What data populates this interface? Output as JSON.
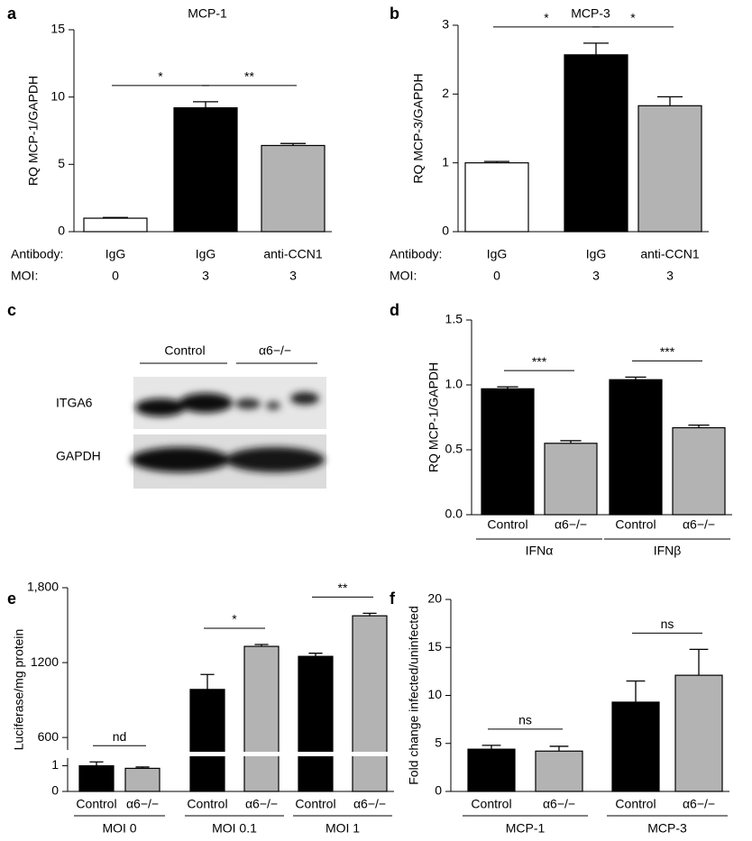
{
  "chart_data": [
    {
      "type": "bar",
      "panel": "a",
      "title": "MCP-1",
      "y_label": "RQ MCP-1/GAPDH",
      "ylim": [
        0,
        15
      ],
      "yticks": [
        0,
        5,
        10,
        15
      ],
      "values": [
        1.0,
        9.2,
        6.4
      ],
      "errors": [
        0.05,
        0.45,
        0.15
      ],
      "colors": [
        "#ffffff",
        "#000000",
        "#b3b3b3"
      ],
      "rows": [
        {
          "label": "Antibody:",
          "values": [
            "IgG",
            "IgG",
            "anti-CCN1"
          ]
        },
        {
          "label": "MOI:",
          "values": [
            "0",
            "3",
            "3"
          ]
        }
      ],
      "annotations": [
        {
          "text": "*",
          "between": [
            0,
            1
          ]
        },
        {
          "text": "**",
          "between": [
            1,
            2
          ]
        }
      ]
    },
    {
      "type": "bar",
      "panel": "b",
      "title": "MCP-3",
      "y_label": "RQ MCP-3/GAPDH",
      "ylim": [
        0,
        3
      ],
      "yticks": [
        0,
        1,
        2,
        3
      ],
      "values": [
        1.0,
        2.57,
        1.83
      ],
      "errors": [
        0.02,
        0.17,
        0.13
      ],
      "colors": [
        "#ffffff",
        "#000000",
        "#b3b3b3"
      ],
      "rows": [
        {
          "label": "Antibody:",
          "values": [
            "IgG",
            "IgG",
            "anti-CCN1"
          ]
        },
        {
          "label": "MOI:",
          "values": [
            "0",
            "3",
            "3"
          ]
        }
      ],
      "annotations": [
        {
          "text": "*",
          "between": [
            0,
            1
          ]
        },
        {
          "text": "*",
          "between": [
            1,
            2
          ]
        }
      ]
    },
    {
      "type": "bar",
      "panel": "d",
      "y_label": "RQ MCP-1/GAPDH",
      "ylim": [
        0,
        1.5
      ],
      "yticks": [
        {
          "value": 0,
          "label": "0.0"
        },
        {
          "value": 0.5,
          "label": "0.5"
        },
        {
          "value": 1,
          "label": "1.0"
        },
        {
          "value": 1.5,
          "label": "1.5"
        }
      ],
      "categories": [
        "Control",
        "α6−/−",
        "Control",
        "α6−/−"
      ],
      "groups": [
        "IFNα",
        "IFNβ"
      ],
      "values": [
        0.97,
        0.55,
        1.04,
        0.67
      ],
      "errors": [
        0.015,
        0.02,
        0.02,
        0.02
      ],
      "colors": [
        "#000000",
        "#b3b3b3",
        "#000000",
        "#b3b3b3"
      ],
      "annotations": [
        {
          "text": "***",
          "between": [
            0,
            1
          ]
        },
        {
          "text": "***",
          "between": [
            2,
            3
          ]
        }
      ]
    },
    {
      "type": "bar",
      "panel": "e",
      "y_label": "Luciferase/mg protein",
      "axis_break": true,
      "ylim": [
        [
          0,
          1.3
        ],
        [
          500,
          1800
        ]
      ],
      "yticks": [
        0,
        1,
        600,
        1200,
        {
          "value": 1800,
          "label": "1,800"
        }
      ],
      "categories": [
        "Control",
        "α6−/−",
        "Control",
        "α6−/−",
        "Control",
        "α6−/−"
      ],
      "groups": [
        "MOI 0",
        "MOI 0.1",
        "MOI 1"
      ],
      "values": [
        1.0,
        0.9,
        985,
        1330,
        1250,
        1575
      ],
      "errors": [
        0.15,
        0.05,
        120,
        15,
        25,
        20
      ],
      "colors": [
        "#000000",
        "#b3b3b3",
        "#000000",
        "#b3b3b3",
        "#000000",
        "#b3b3b3"
      ],
      "annotations": [
        {
          "text": "nd",
          "between": [
            0,
            1
          ]
        },
        {
          "text": "*",
          "between": [
            2,
            3
          ]
        },
        {
          "text": "**",
          "between": [
            4,
            5
          ]
        }
      ]
    },
    {
      "type": "bar",
      "panel": "f",
      "y_label": "Fold change infected/uninfected",
      "ylim": [
        0,
        20
      ],
      "yticks": [
        0,
        5,
        10,
        15,
        20
      ],
      "categories": [
        "Control",
        "α6−/−",
        "Control",
        "α6−/−"
      ],
      "groups": [
        "MCP-1",
        "MCP-3"
      ],
      "values": [
        4.4,
        4.2,
        9.3,
        12.1
      ],
      "errors": [
        0.4,
        0.5,
        2.2,
        2.7
      ],
      "colors": [
        "#000000",
        "#b3b3b3",
        "#000000",
        "#b3b3b3"
      ],
      "annotations": [
        {
          "text": "ns",
          "between": [
            0,
            1
          ]
        },
        {
          "text": "ns",
          "between": [
            2,
            3
          ]
        }
      ]
    }
  ],
  "blot": {
    "panel": "c",
    "groups": [
      "Control",
      "α6−/−"
    ],
    "rows": [
      "ITGA6",
      "GAPDH"
    ]
  }
}
